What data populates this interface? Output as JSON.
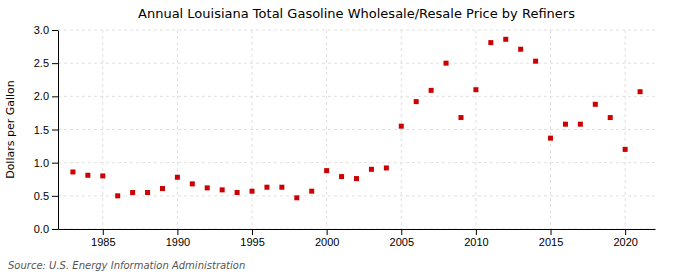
{
  "chart_data": {
    "type": "scatter",
    "title": "Annual Louisiana Total Gasoline Wholesale/Resale Price by Refiners",
    "ylabel": "Dollars per Gallon",
    "source": "Source: U.S. Energy Information Administration",
    "x": [
      1983,
      1984,
      1985,
      1986,
      1987,
      1988,
      1989,
      1990,
      1991,
      1992,
      1993,
      1994,
      1995,
      1996,
      1997,
      1998,
      1999,
      2000,
      2001,
      2002,
      2003,
      2004,
      2005,
      2006,
      2007,
      2008,
      2009,
      2010,
      2011,
      2012,
      2013,
      2014,
      2015,
      2016,
      2017,
      2018,
      2019,
      2020,
      2021
    ],
    "values": [
      0.86,
      0.81,
      0.8,
      0.5,
      0.55,
      0.55,
      0.61,
      0.78,
      0.68,
      0.62,
      0.59,
      0.55,
      0.57,
      0.63,
      0.63,
      0.47,
      0.57,
      0.88,
      0.79,
      0.76,
      0.9,
      0.92,
      1.55,
      1.92,
      2.09,
      2.5,
      1.68,
      2.1,
      2.81,
      2.86,
      2.71,
      2.53,
      1.37,
      1.58,
      1.58,
      1.88,
      1.68,
      1.2,
      2.07
    ],
    "color": "#cc0000",
    "marker": "square",
    "xlim": [
      1982,
      2022
    ],
    "ylim": [
      0.0,
      3.0
    ],
    "xticks": [
      1985,
      1990,
      1995,
      2000,
      2005,
      2010,
      2015,
      2020
    ],
    "yticks": [
      {
        "value": 0.0,
        "label": "0.0"
      },
      0.5,
      {
        "value": 1.0,
        "label": "1.0"
      },
      1.5,
      {
        "value": 2.0,
        "label": "2.0"
      },
      2.5,
      {
        "value": 3.0,
        "label": "3.0"
      }
    ],
    "grid": true
  }
}
